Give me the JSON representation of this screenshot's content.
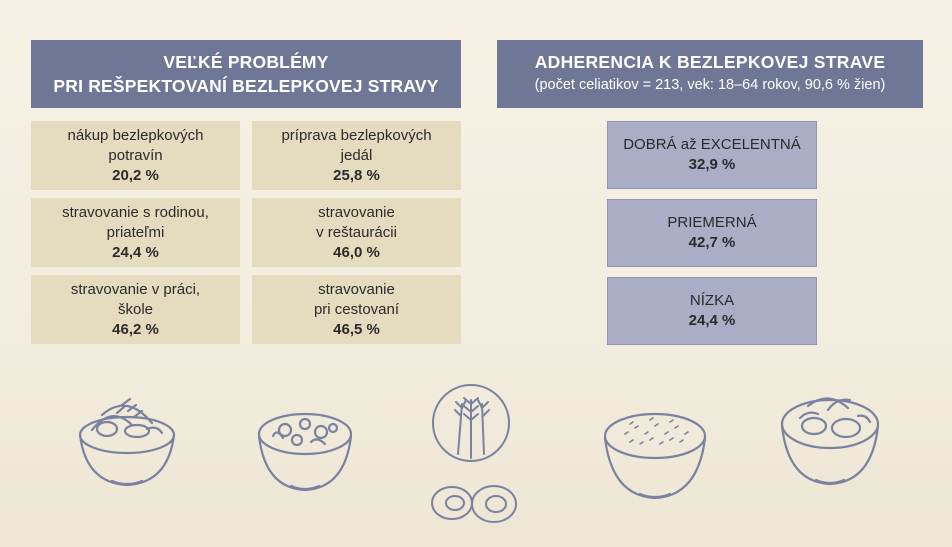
{
  "left_panel": {
    "title_line1": "VEĽKÉ PROBLÉMY",
    "title_line2": "PRI REŠPEKTOVANÍ BEZLEPKOVEJ STRAVY",
    "items": [
      {
        "line1": "nákup bezlepkových",
        "line2": "potravín",
        "value": "20,2 %"
      },
      {
        "line1": "príprava bezlepkových",
        "line2": "jedál",
        "value": "25,8 %"
      },
      {
        "line1": "stravovanie s rodinou,",
        "line2": "priateľmi",
        "value": "24,4 %"
      },
      {
        "line1": "stravovanie",
        "line2": "v reštaurácii",
        "value": "46,0 %"
      },
      {
        "line1": "stravovanie v práci,",
        "line2": "škole",
        "value": "46,2 %"
      },
      {
        "line1": "stravovanie",
        "line2": "pri cestovaní",
        "value": "46,5 %"
      }
    ]
  },
  "right_panel": {
    "title": "ADHERENCIA K BEZLEPKOVEJ STRAVE",
    "subtitle": "(počet celiatikov = 213, vek: 18–64 rokov, 90,6 % žien)",
    "items": [
      {
        "label": "DOBRÁ až EXCELENTNÁ",
        "value": "32,9 %"
      },
      {
        "label": "PRIEMERNÁ",
        "value": "42,7 %"
      },
      {
        "label": "NÍZKA",
        "value": "24,4 %"
      }
    ]
  },
  "colors": {
    "header_bg": "#6e7896",
    "problem_bg": "#e5dbbf",
    "adherence_bg": "#a9adc6",
    "page_bg": "#f5f0e3",
    "illustration_stroke": "#6e7896"
  },
  "illustrations": [
    "bowl-with-wheat-icon",
    "bowl-with-vegetables-icon",
    "wheat-plate-icon",
    "sliced-eggs-icon",
    "bowl-with-rice-icon",
    "bowl-with-salad-icon"
  ]
}
